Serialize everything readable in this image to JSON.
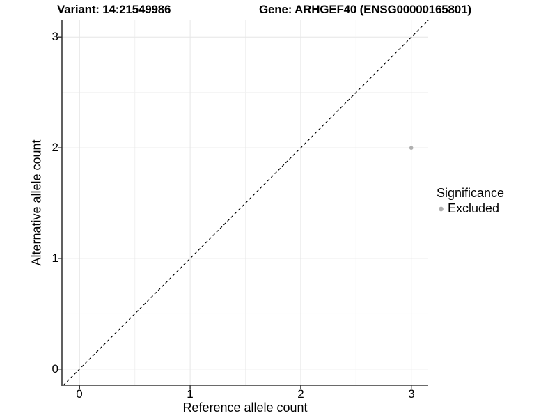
{
  "titles": {
    "variant": "Variant: 14:21549986",
    "gene": "Gene: ARHGEF40 (ENSG00000165801)"
  },
  "chart_data": {
    "type": "scatter",
    "title_left": "Variant: 14:21549986",
    "title_right": "Gene: ARHGEF40 (ENSG00000165801)",
    "xlabel": "Reference allele count",
    "ylabel": "Alternative allele count",
    "xlim": [
      -0.15,
      3.15
    ],
    "ylim": [
      -0.15,
      3.15
    ],
    "x_tick_labels": [
      "0",
      "1",
      "2",
      "3"
    ],
    "y_tick_labels": [
      "0",
      "1",
      "2",
      "3"
    ],
    "x_tick_values": [
      0,
      1,
      2,
      3
    ],
    "y_tick_values": [
      0,
      1,
      2,
      3
    ],
    "grid": "major at integers, minor at half-integers, light gray on white",
    "reference_line": {
      "type": "identity y=x",
      "style": "dashed",
      "color": "#000000"
    },
    "series": [
      {
        "name": "Excluded",
        "color": "#b0b0b0",
        "points": [
          {
            "x": 3,
            "y": 2
          }
        ]
      }
    ],
    "legend": {
      "title": "Significance",
      "position": "right",
      "items": [
        {
          "label": "Excluded",
          "color": "#b0b0b0"
        }
      ]
    }
  },
  "colors": {
    "background": "#ffffff",
    "grid_major": "#e6e6e6",
    "grid_minor": "#f2f2f2",
    "axis_line": "#383838",
    "point": "#b0b0b0",
    "text": "#000000"
  }
}
